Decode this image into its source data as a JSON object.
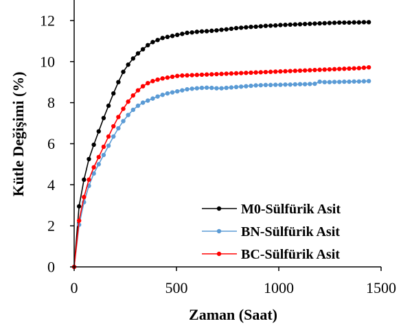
{
  "chart_data": {
    "type": "line",
    "xlabel": "Zaman (Saat)",
    "ylabel": "Kütle Değişimi (%)",
    "xlim": [
      0,
      1500
    ],
    "ylim": [
      0,
      13
    ],
    "xticks": [
      "0",
      "500",
      "1000",
      "1500"
    ],
    "yticks": [
      "0",
      "2",
      "4",
      "6",
      "8",
      "10",
      "12"
    ],
    "xtick_values": [
      0,
      500,
      1000,
      1500
    ],
    "ytick_values": [
      0,
      2,
      4,
      6,
      8,
      10,
      12
    ],
    "grid": false,
    "legend_position": "bottom-right",
    "series": [
      {
        "name": "M0-Sülfürik Asit",
        "color": "#000000",
        "x": [
          0,
          24,
          48,
          72,
          96,
          120,
          144,
          168,
          192,
          216,
          240,
          264,
          288,
          312,
          336,
          360,
          384,
          408,
          432,
          456,
          480,
          504,
          528,
          552,
          576,
          600,
          624,
          648,
          672,
          696,
          720,
          744,
          768,
          792,
          816,
          840,
          864,
          888,
          912,
          936,
          960,
          984,
          1008,
          1032,
          1056,
          1080,
          1104,
          1128,
          1152,
          1176,
          1200,
          1224,
          1248,
          1272,
          1296,
          1320,
          1344,
          1368,
          1392,
          1416,
          1440
        ],
        "y": [
          0,
          2.95,
          4.25,
          5.25,
          5.95,
          6.6,
          7.25,
          7.85,
          8.45,
          9.0,
          9.5,
          9.85,
          10.15,
          10.4,
          10.6,
          10.8,
          10.95,
          11.05,
          11.15,
          11.2,
          11.25,
          11.3,
          11.35,
          11.4,
          11.42,
          11.45,
          11.47,
          11.48,
          11.5,
          11.52,
          11.55,
          11.57,
          11.6,
          11.63,
          11.65,
          11.67,
          11.69,
          11.7,
          11.72,
          11.74,
          11.75,
          11.76,
          11.78,
          11.79,
          11.8,
          11.81,
          11.82,
          11.83,
          11.84,
          11.85,
          11.86,
          11.87,
          11.88,
          11.89,
          11.9,
          11.9,
          11.9,
          11.91,
          11.91,
          11.92,
          11.92
        ]
      },
      {
        "name": "BN-Sülfürik Asit",
        "color": "#5B9BD5",
        "x": [
          0,
          24,
          48,
          72,
          96,
          120,
          144,
          168,
          192,
          216,
          240,
          264,
          288,
          312,
          336,
          360,
          384,
          408,
          432,
          456,
          480,
          504,
          528,
          552,
          576,
          600,
          624,
          648,
          672,
          696,
          720,
          744,
          768,
          792,
          816,
          840,
          864,
          888,
          912,
          936,
          960,
          984,
          1008,
          1032,
          1056,
          1080,
          1104,
          1128,
          1152,
          1176,
          1200,
          1224,
          1248,
          1272,
          1296,
          1320,
          1344,
          1368,
          1392,
          1416,
          1440
        ],
        "y": [
          0,
          2.05,
          3.15,
          3.95,
          4.55,
          5.0,
          5.45,
          5.9,
          6.35,
          6.75,
          7.1,
          7.4,
          7.65,
          7.85,
          8.0,
          8.1,
          8.2,
          8.3,
          8.38,
          8.45,
          8.5,
          8.55,
          8.6,
          8.65,
          8.68,
          8.7,
          8.72,
          8.73,
          8.72,
          8.7,
          8.7,
          8.72,
          8.74,
          8.76,
          8.78,
          8.8,
          8.82,
          8.84,
          8.85,
          8.86,
          8.86,
          8.87,
          8.87,
          8.88,
          8.88,
          8.89,
          8.9,
          8.9,
          8.91,
          8.92,
          9.02,
          9.0,
          9.0,
          9.01,
          9.01,
          9.02,
          9.02,
          9.03,
          9.03,
          9.04,
          9.05
        ]
      },
      {
        "name": "BC-Sülfürik Asit",
        "color": "#FF0000",
        "x": [
          0,
          24,
          48,
          72,
          96,
          120,
          144,
          168,
          192,
          216,
          240,
          264,
          288,
          312,
          336,
          360,
          384,
          408,
          432,
          456,
          480,
          504,
          528,
          552,
          576,
          600,
          624,
          648,
          672,
          696,
          720,
          744,
          768,
          792,
          816,
          840,
          864,
          888,
          912,
          936,
          960,
          984,
          1008,
          1032,
          1056,
          1080,
          1104,
          1128,
          1152,
          1176,
          1200,
          1224,
          1248,
          1272,
          1296,
          1320,
          1344,
          1368,
          1392,
          1416,
          1440
        ],
        "y": [
          0,
          2.25,
          3.4,
          4.25,
          4.85,
          5.35,
          5.85,
          6.35,
          6.85,
          7.3,
          7.7,
          8.05,
          8.35,
          8.6,
          8.8,
          8.95,
          9.05,
          9.12,
          9.18,
          9.22,
          9.26,
          9.3,
          9.32,
          9.33,
          9.34,
          9.35,
          9.36,
          9.37,
          9.38,
          9.39,
          9.4,
          9.41,
          9.42,
          9.43,
          9.44,
          9.45,
          9.46,
          9.47,
          9.48,
          9.49,
          9.5,
          9.51,
          9.52,
          9.53,
          9.54,
          9.55,
          9.56,
          9.57,
          9.58,
          9.59,
          9.6,
          9.61,
          9.62,
          9.63,
          9.64,
          9.65,
          9.66,
          9.67,
          9.68,
          9.7,
          9.72
        ]
      }
    ]
  }
}
